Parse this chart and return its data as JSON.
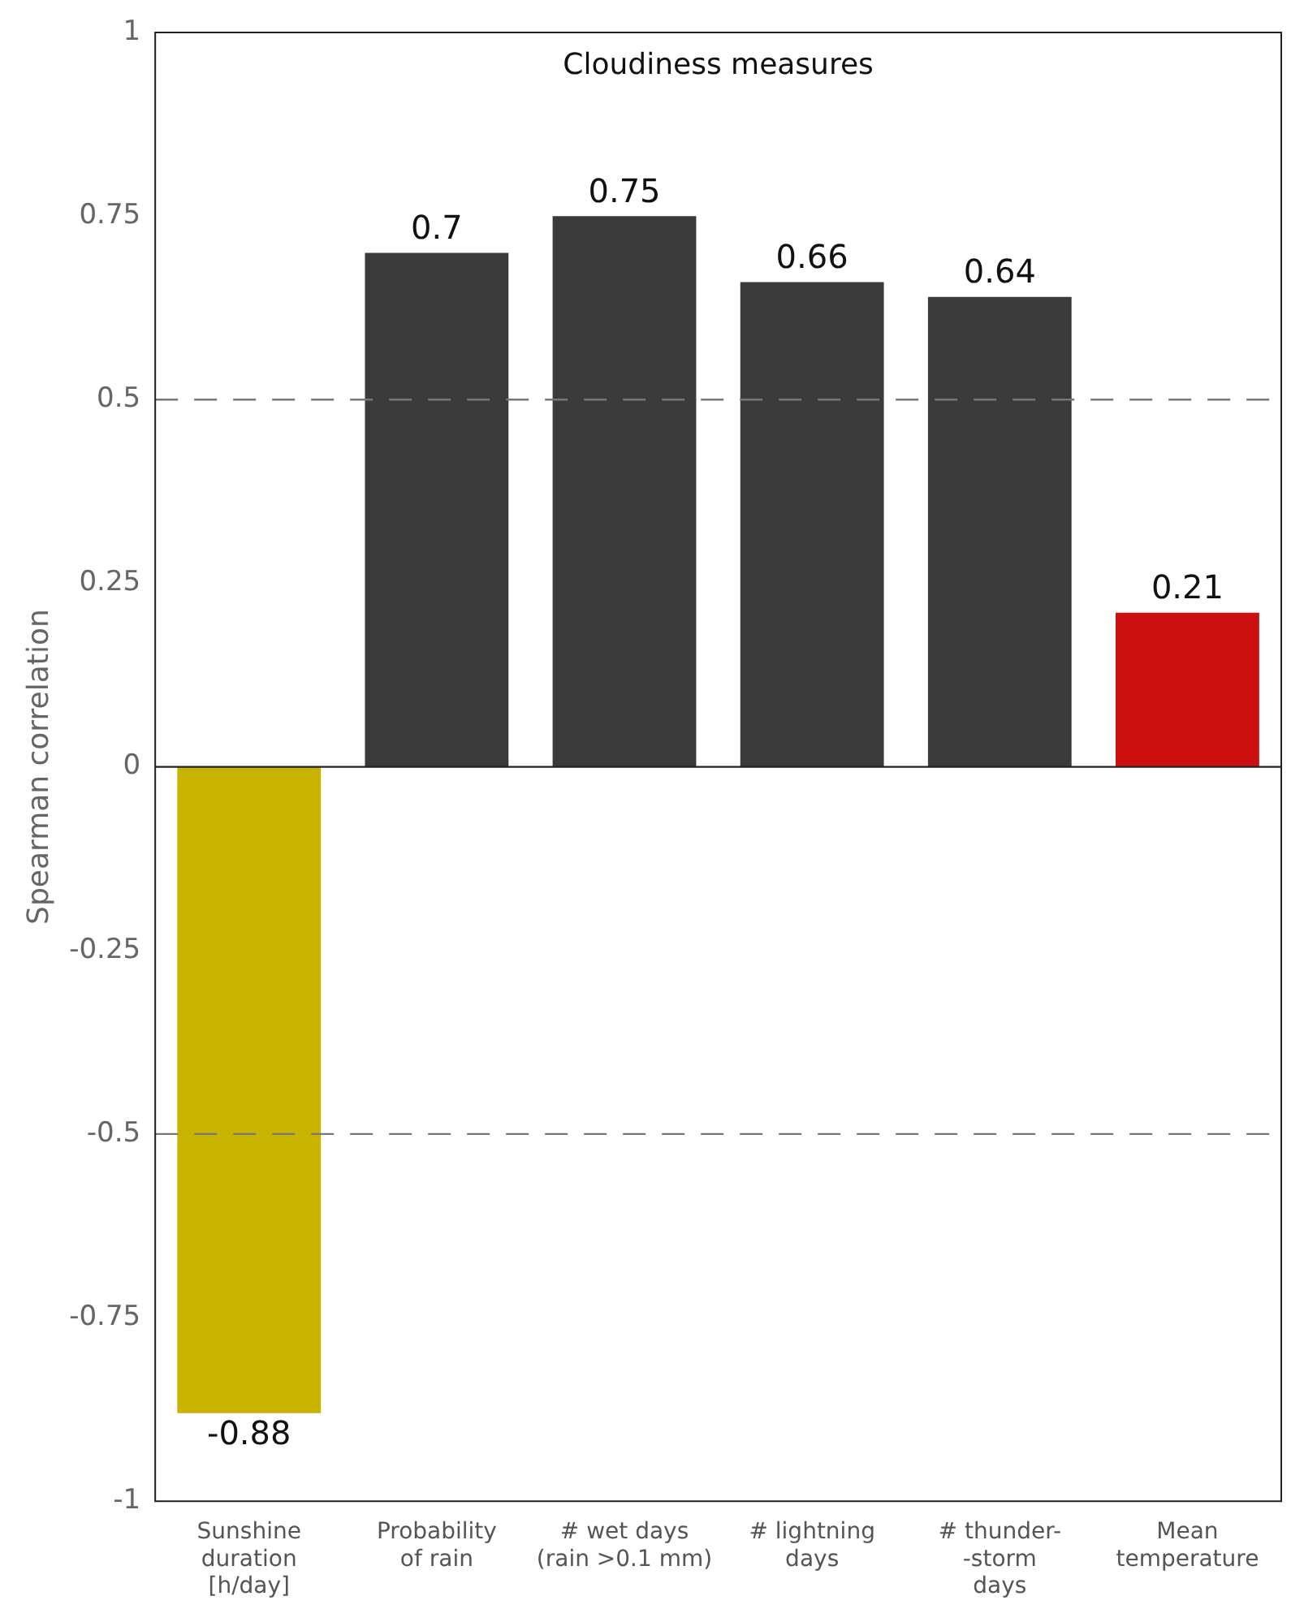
{
  "chart_data": {
    "type": "bar",
    "ylabel": "Spearman correlation",
    "categories": [
      "Sunshine\nduration\n[h/day]",
      "Probability\nof rain",
      "# wet days\n(rain >0.1 mm)",
      "# lightning\ndays",
      "# thunder-\n-storm\ndays",
      "Mean\ntemperature"
    ],
    "values": [
      -0.88,
      0.7,
      0.75,
      0.66,
      0.64,
      0.21
    ],
    "colors": [
      "#c8b400",
      "#3a3a3a",
      "#3a3a3a",
      "#3a3a3a",
      "#3a3a3a",
      "#cc1010"
    ],
    "ylim": [
      -1,
      1
    ],
    "yticks": [
      -1,
      -0.75,
      -0.5,
      -0.25,
      0,
      0.25,
      0.5,
      0.75,
      1
    ],
    "grid": false,
    "data_labels": true,
    "ref_lines": [
      {
        "axis": "y",
        "value": 0.5,
        "line_style": "dashed",
        "color": "#777777"
      },
      {
        "axis": "y",
        "value": -0.5,
        "line_style": "dashed",
        "color": "#777777"
      },
      {
        "axis": "y",
        "value": 0,
        "line_style": "solid",
        "color": "#222222"
      }
    ],
    "annotations": [
      "Cloudiness measures"
    ]
  }
}
